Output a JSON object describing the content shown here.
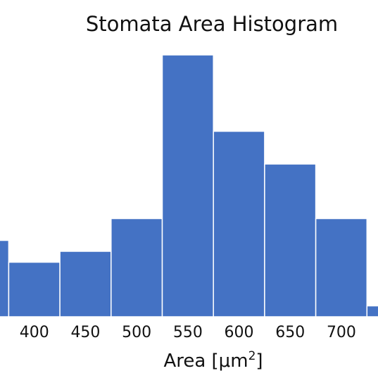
{
  "chart_data": {
    "type": "bar",
    "title": "Stomata Area Histogram",
    "xlabel": "Area [μm²]",
    "ylabel": "",
    "grid": false,
    "bar_color": "#4472C4",
    "edge_color": "#ffffff",
    "bin_width": 50,
    "x_ticks": [
      400,
      450,
      500,
      550,
      600,
      650,
      700
    ],
    "bins": [
      {
        "start": 325,
        "end": 375,
        "count": 7
      },
      {
        "start": 375,
        "end": 425,
        "count": 5
      },
      {
        "start": 425,
        "end": 475,
        "count": 6
      },
      {
        "start": 475,
        "end": 525,
        "count": 9
      },
      {
        "start": 525,
        "end": 575,
        "count": 24
      },
      {
        "start": 575,
        "end": 625,
        "count": 17
      },
      {
        "start": 625,
        "end": 675,
        "count": 14
      },
      {
        "start": 675,
        "end": 725,
        "count": 9
      },
      {
        "start": 725,
        "end": 775,
        "count": 1
      }
    ]
  }
}
